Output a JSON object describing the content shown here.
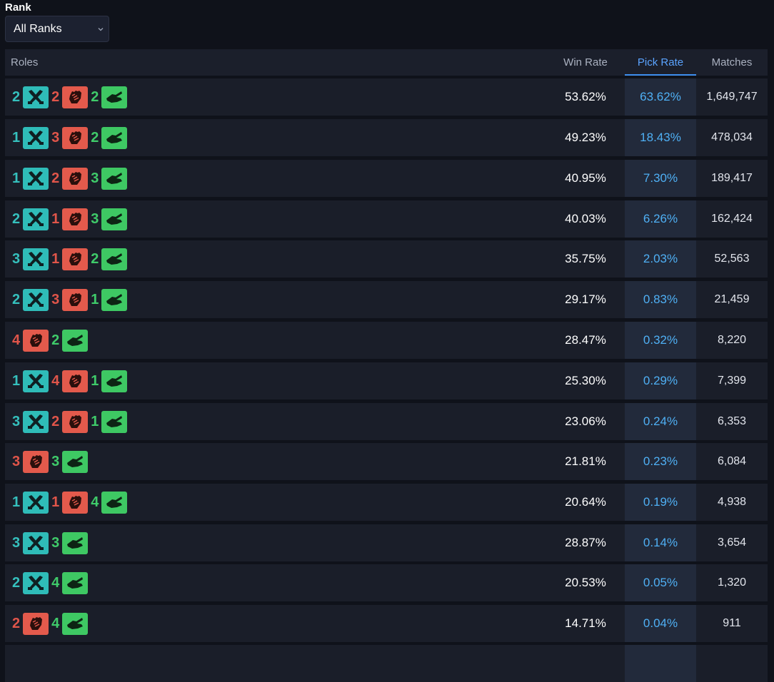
{
  "filter": {
    "label": "Rank",
    "selected": "All Ranks"
  },
  "table": {
    "headers": {
      "roles": "Roles",
      "win_rate": "Win Rate",
      "pick_rate": "Pick Rate",
      "matches": "Matches"
    },
    "sorted_by": "pick_rate",
    "role_colors": {
      "tank": "#2fbcb8",
      "damage": "#e35a4c",
      "support": "#3ec863"
    },
    "rows": [
      {
        "tank": "2",
        "damage": "2",
        "support": "2",
        "win_rate": "53.62%",
        "pick_rate": "63.62%",
        "matches": "1,649,747"
      },
      {
        "tank": "1",
        "damage": "3",
        "support": "2",
        "win_rate": "49.23%",
        "pick_rate": "18.43%",
        "matches": "478,034"
      },
      {
        "tank": "1",
        "damage": "2",
        "support": "3",
        "win_rate": "40.95%",
        "pick_rate": "7.30%",
        "matches": "189,417"
      },
      {
        "tank": "2",
        "damage": "1",
        "support": "3",
        "win_rate": "40.03%",
        "pick_rate": "6.26%",
        "matches": "162,424"
      },
      {
        "tank": "3",
        "damage": "1",
        "support": "2",
        "win_rate": "35.75%",
        "pick_rate": "2.03%",
        "matches": "52,563"
      },
      {
        "tank": "2",
        "damage": "3",
        "support": "1",
        "win_rate": "29.17%",
        "pick_rate": "0.83%",
        "matches": "21,459"
      },
      {
        "tank": null,
        "damage": "4",
        "support": "2",
        "win_rate": "28.47%",
        "pick_rate": "0.32%",
        "matches": "8,220"
      },
      {
        "tank": "1",
        "damage": "4",
        "support": "1",
        "win_rate": "25.30%",
        "pick_rate": "0.29%",
        "matches": "7,399"
      },
      {
        "tank": "3",
        "damage": "2",
        "support": "1",
        "win_rate": "23.06%",
        "pick_rate": "0.24%",
        "matches": "6,353"
      },
      {
        "tank": null,
        "damage": "3",
        "support": "3",
        "win_rate": "21.81%",
        "pick_rate": "0.23%",
        "matches": "6,084"
      },
      {
        "tank": "1",
        "damage": "1",
        "support": "4",
        "win_rate": "20.64%",
        "pick_rate": "0.19%",
        "matches": "4,938"
      },
      {
        "tank": "3",
        "damage": null,
        "support": "3",
        "win_rate": "28.87%",
        "pick_rate": "0.14%",
        "matches": "3,654"
      },
      {
        "tank": "2",
        "damage": null,
        "support": "4",
        "win_rate": "20.53%",
        "pick_rate": "0.05%",
        "matches": "1,320"
      },
      {
        "tank": null,
        "damage": "2",
        "support": "4",
        "win_rate": "14.71%",
        "pick_rate": "0.04%",
        "matches": "911"
      },
      {
        "tank": null,
        "damage": null,
        "support": null,
        "win_rate": "",
        "pick_rate": "",
        "matches": ""
      }
    ]
  }
}
